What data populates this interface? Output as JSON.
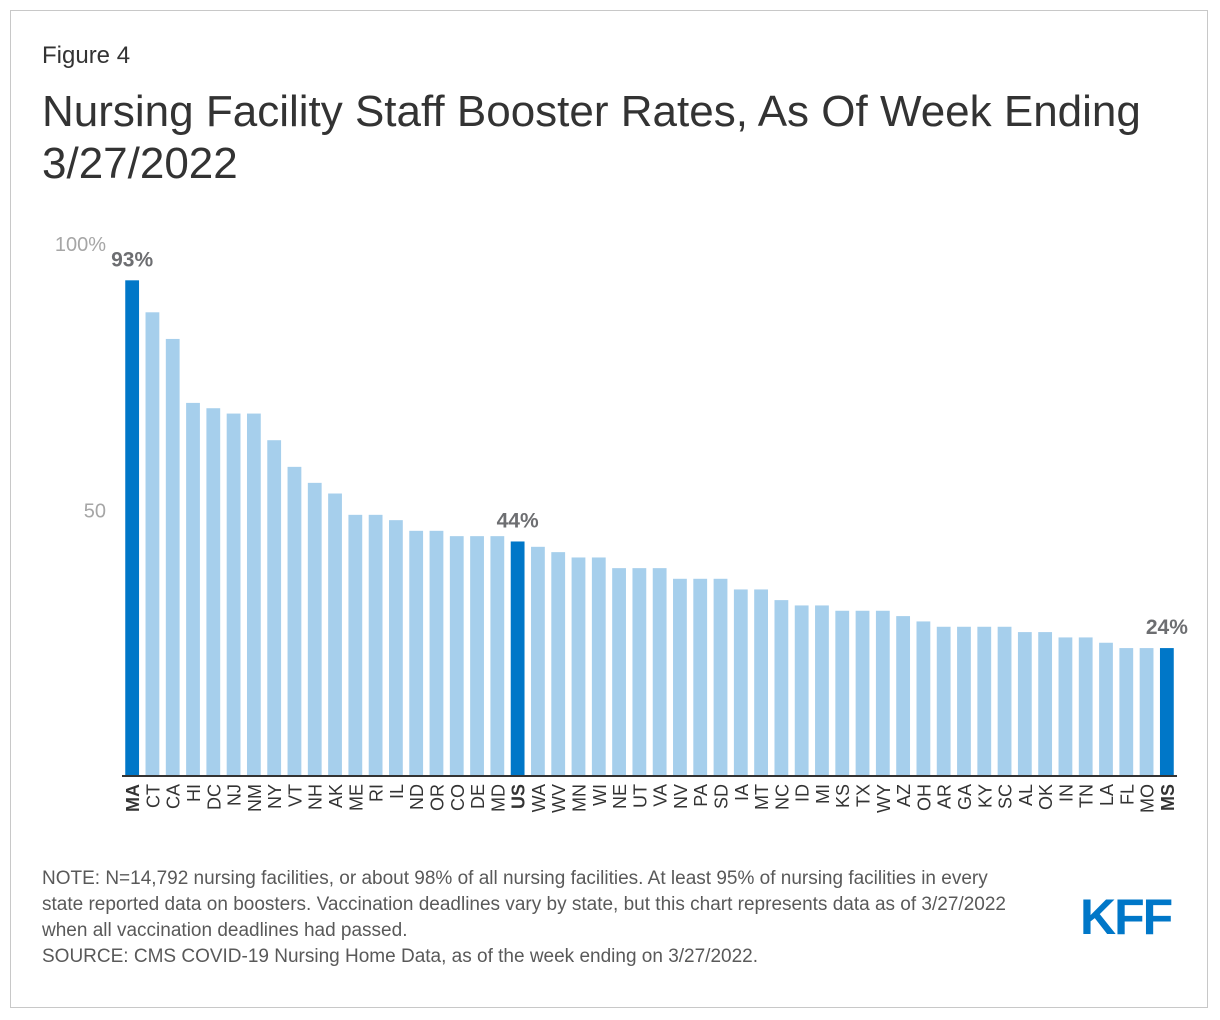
{
  "figure_label": "Figure 4",
  "title": "Nursing Facility Staff Booster Rates, As Of Week Ending 3/27/2022",
  "notes": {
    "note": "NOTE: N=14,792 nursing facilities, or about 98% of all nursing facilities. At least 95% of nursing facilities in every state reported data on boosters. Vaccination deadlines vary by state, but this chart represents data as of 3/27/2022 when all vaccination deadlines had passed.",
    "source": "SOURCE: CMS COVID-19 Nursing Home Data, as of the week ending on 3/27/2022."
  },
  "logo": "KFF",
  "colors": {
    "highlight": "#0077c8",
    "bar": "#a6cfec",
    "axis": "#333333",
    "tick_label": "#a6a6a6",
    "data_label": "#6d6e71"
  },
  "chart_data": {
    "type": "bar",
    "title": "Nursing Facility Staff Booster Rates, As Of Week Ending 3/27/2022",
    "xlabel": "",
    "ylabel": "",
    "ylim": [
      0,
      100
    ],
    "y_ticks": [
      {
        "value": 100,
        "label": "100%"
      },
      {
        "value": 50,
        "label": "50"
      }
    ],
    "grid": false,
    "categories": [
      "MA",
      "CT",
      "CA",
      "HI",
      "DC",
      "NJ",
      "NM",
      "NY",
      "VT",
      "NH",
      "AK",
      "ME",
      "RI",
      "IL",
      "ND",
      "OR",
      "CO",
      "DE",
      "MD",
      "US",
      "WA",
      "WV",
      "MN",
      "WI",
      "NE",
      "UT",
      "VA",
      "NV",
      "PA",
      "SD",
      "IA",
      "MT",
      "NC",
      "ID",
      "MI",
      "KS",
      "TX",
      "WY",
      "AZ",
      "OH",
      "AR",
      "GA",
      "KY",
      "SC",
      "AL",
      "OK",
      "IN",
      "TN",
      "LA",
      "FL",
      "MO",
      "MS"
    ],
    "values": [
      93,
      87,
      82,
      70,
      69,
      68,
      68,
      63,
      58,
      55,
      53,
      49,
      49,
      48,
      46,
      46,
      45,
      45,
      45,
      44,
      43,
      42,
      41,
      41,
      39,
      39,
      39,
      37,
      37,
      37,
      35,
      35,
      33,
      32,
      32,
      31,
      31,
      31,
      30,
      29,
      28,
      28,
      28,
      28,
      27,
      27,
      26,
      26,
      25,
      24,
      24,
      24
    ],
    "highlighted": [
      "MA",
      "US",
      "MS"
    ],
    "data_labels": [
      {
        "category": "MA",
        "text": "93%"
      },
      {
        "category": "US",
        "text": "44%"
      },
      {
        "category": "MS",
        "text": "24%"
      }
    ]
  }
}
